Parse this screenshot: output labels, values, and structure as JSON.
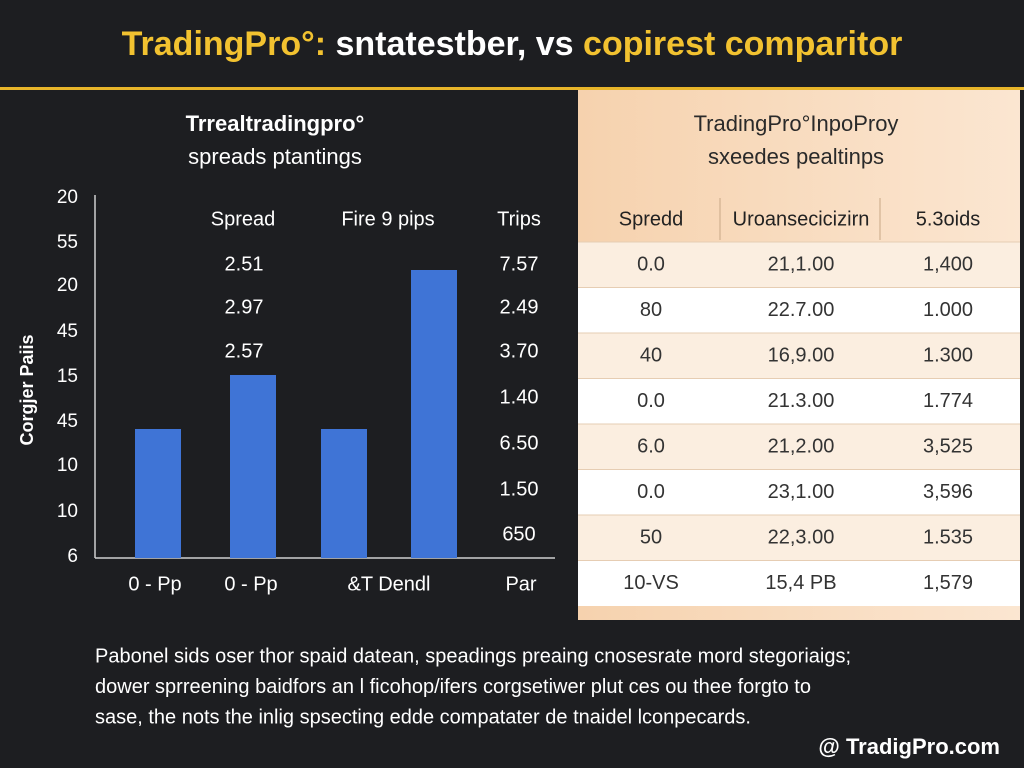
{
  "header": {
    "title": [
      "TradingPro°: ",
      "sntatestber, vs ",
      "copirest comparitor"
    ]
  },
  "left_panel": {
    "title": [
      "Trrealtradingpro°",
      "spreads ptantings"
    ],
    "y_axis_title": "Corgjer Paiis",
    "y_labels": [
      "20",
      "55",
      "20",
      "45",
      "15",
      "45",
      "10",
      "10",
      "6"
    ],
    "column_headers": [
      "Spread",
      "Fire 9 pips",
      "Trips"
    ],
    "spread_values": [
      "2.51",
      "2.97",
      "2.57"
    ],
    "trips_values": [
      "7.57",
      "2.49",
      "3.70",
      "1.40",
      "6.50",
      "1.50",
      "650"
    ],
    "x_labels": [
      "0 - Pp",
      "0 - Pp",
      "&T Dendl",
      "Par"
    ]
  },
  "right_panel": {
    "title": [
      "TradingPro°InpoProy",
      "sxeedes pealtinps"
    ],
    "table": {
      "header": [
        "Spredd",
        "Uroansecicizirn",
        "5.3oids"
      ],
      "rows": [
        [
          "0.0",
          "21,1.00",
          "1,400"
        ],
        [
          "80",
          "22.7.00",
          "1.000"
        ],
        [
          "40",
          "16,9.00",
          "1.300"
        ],
        [
          "0.0",
          "21.3.00",
          "1.774"
        ],
        [
          "6.0",
          "21,2.00",
          "3,525"
        ],
        [
          "0.0",
          "23,1.00",
          "3,596"
        ],
        [
          "50",
          "22,3.00",
          "1.535"
        ],
        [
          "10-VS",
          "15,4 PB",
          "1,579"
        ]
      ]
    }
  },
  "footer": {
    "paragraph": [
      "Pabonel sids oser thor spaid datean, speadings preaing cnosesrate mord stegoriaigs;",
      "dower sprreening baidfors an l ficohop/ifers corgsetiwer plut ces ou thee forgto to",
      "sase, the nots the inlig spsecting edde compatater de tnaidel lconpecards."
    ],
    "brand": "@ TradigPro.com"
  }
}
